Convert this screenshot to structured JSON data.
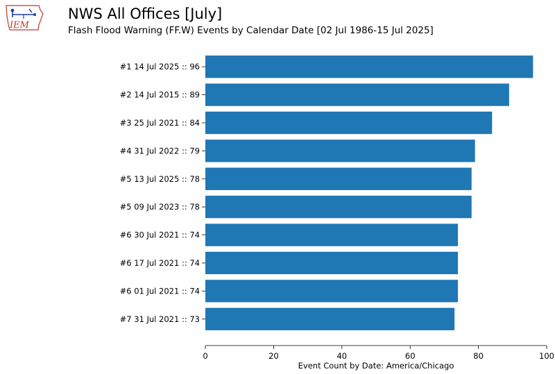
{
  "header": {
    "title": "NWS All Offices [July]",
    "subtitle": "Flash Flood Warning (FF.W) Events by Calendar Date [02 Jul 1986-15 Jul 2025]",
    "logo_text": "IEM"
  },
  "colors": {
    "bar": "#1f77b4",
    "logo_text": "#c0392b",
    "logo_outline": "#c0392b",
    "logo_figure": "#1f3fae"
  },
  "chart_data": {
    "type": "bar",
    "orientation": "horizontal",
    "categories": [
      "#1  14 Jul 2025 :: 96",
      "#2  14 Jul 2015 :: 89",
      "#3  25 Jul 2021 :: 84",
      "#4  31 Jul 2022 :: 79",
      "#5  13 Jul 2025 :: 78",
      "#5  09 Jul 2023 :: 78",
      "#6  30 Jul 2021 :: 74",
      "#6  17 Jul 2021 :: 74",
      "#6  01 Jul 2021 :: 74",
      "#7  31 Jul 2021 :: 73"
    ],
    "values": [
      96,
      89,
      84,
      79,
      78,
      78,
      74,
      74,
      74,
      73
    ],
    "xlabel": "Event Count by Date: America/Chicago",
    "ylabel": "",
    "xlim": [
      0,
      100
    ],
    "xticks": [
      0,
      20,
      40,
      60,
      80,
      100
    ],
    "grid": false
  }
}
